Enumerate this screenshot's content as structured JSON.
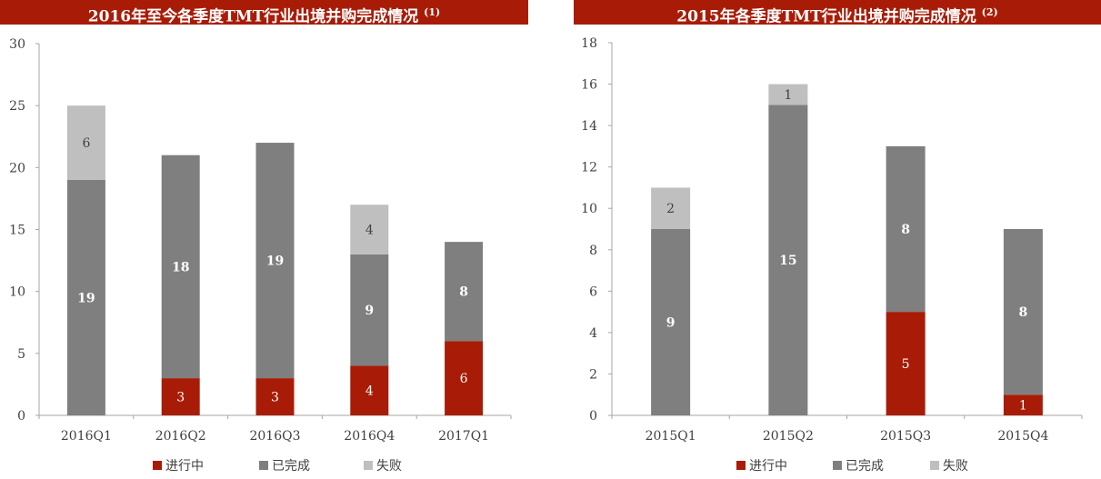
{
  "colors": {
    "title_bg": "#a81c07",
    "in_progress": "#a81c07",
    "completed": "#7f7f7f",
    "failed": "#bfbfbf",
    "axis": "#a6a6a6",
    "tick_text": "#404040"
  },
  "chart_data": [
    {
      "type": "bar",
      "stacked": true,
      "title": "2016年至今各季度TMT行业出境并购完成情况",
      "title_note": "(1)",
      "categories": [
        "2016Q1",
        "2016Q2",
        "2016Q3",
        "2016Q4",
        "2017Q1"
      ],
      "ylim": [
        0,
        30
      ],
      "yticks": [
        0,
        5,
        10,
        15,
        20,
        25,
        30
      ],
      "ytick_labels": [
        "0",
        "5",
        "10",
        "15",
        "20",
        "25",
        "30"
      ],
      "grid": false,
      "legend_position": "bottom",
      "series": [
        {
          "name": "进行中",
          "color": "#a81c07",
          "values": [
            0,
            3,
            3,
            4,
            6
          ],
          "labels": [
            "",
            "3",
            "3",
            "4",
            "6"
          ],
          "label_bold": false
        },
        {
          "name": "已完成",
          "color": "#7f7f7f",
          "values": [
            19,
            18,
            19,
            9,
            8
          ],
          "labels": [
            "19",
            "18",
            "19",
            "9",
            "8"
          ],
          "label_bold": true
        },
        {
          "name": "失败",
          "color": "#bfbfbf",
          "values": [
            6,
            0,
            0,
            4,
            0
          ],
          "labels": [
            "6",
            "",
            "",
            "4",
            ""
          ],
          "label_bold": false
        }
      ]
    },
    {
      "type": "bar",
      "stacked": true,
      "title": "2015年各季度TMT行业出境并购完成情况",
      "title_note": "(2)",
      "categories": [
        "2015Q1",
        "2015Q2",
        "2015Q3",
        "2015Q4"
      ],
      "ylim": [
        0,
        18
      ],
      "yticks": [
        0,
        2,
        4,
        6,
        8,
        10,
        12,
        14,
        16,
        18
      ],
      "ytick_labels": [
        "0",
        "2",
        "4",
        "6",
        "8",
        "10",
        "12",
        "14",
        "16",
        "18"
      ],
      "grid": false,
      "legend_position": "bottom",
      "series": [
        {
          "name": "进行中",
          "color": "#a81c07",
          "values": [
            0,
            0,
            5,
            1
          ],
          "labels": [
            "",
            "",
            "5",
            "1"
          ],
          "label_bold": false
        },
        {
          "name": "已完成",
          "color": "#7f7f7f",
          "values": [
            9,
            15,
            8,
            8
          ],
          "labels": [
            "9",
            "15",
            "8",
            "8"
          ],
          "label_bold": true
        },
        {
          "name": "失败",
          "color": "#bfbfbf",
          "values": [
            2,
            1,
            0,
            0
          ],
          "labels": [
            "2",
            "1",
            "",
            ""
          ],
          "label_bold": false
        }
      ]
    }
  ]
}
